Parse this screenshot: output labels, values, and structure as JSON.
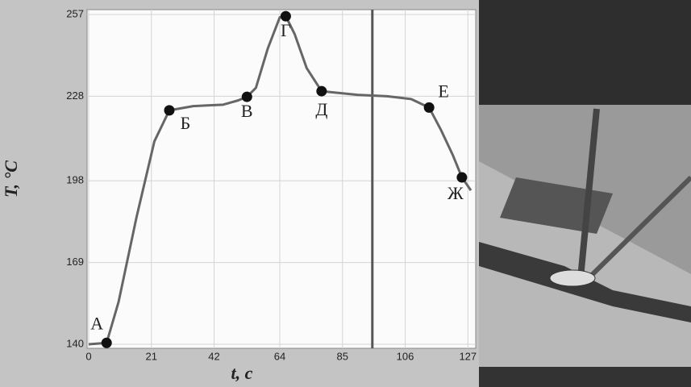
{
  "chart_data": {
    "type": "line",
    "xlabel": "t, c",
    "ylabel": "T, °C",
    "xlim": [
      0,
      128
    ],
    "ylim": [
      140,
      257
    ],
    "xticks": [
      0,
      21,
      42,
      64,
      85,
      106,
      127
    ],
    "yticks": [
      140,
      169,
      198,
      228,
      257
    ],
    "grid": true,
    "series": [
      {
        "color": "#666666",
        "x": [
          0,
          6,
          10,
          16,
          22,
          27,
          35,
          45,
          50,
          53,
          56,
          60,
          64,
          66,
          69,
          73,
          78,
          90,
          100,
          108,
          114,
          118,
          122,
          125,
          128
        ],
        "values": [
          140,
          140.5,
          155,
          185,
          212,
          223,
          224.5,
          225,
          226.5,
          227.8,
          231,
          245,
          256,
          256.4,
          250,
          238,
          229.8,
          228.5,
          228,
          227,
          224,
          216,
          207,
          199.2,
          194.6
        ]
      }
    ],
    "points": [
      {
        "label": "А",
        "x": 6,
        "y": 140.5
      },
      {
        "label": "Б",
        "x": 27,
        "y": 223
      },
      {
        "label": "В",
        "x": 53,
        "y": 227.8
      },
      {
        "label": "Г",
        "x": 66,
        "y": 256.4
      },
      {
        "label": "Д",
        "x": 78,
        "y": 229.8
      },
      {
        "label": "Е",
        "x": 114,
        "y": 224
      },
      {
        "label": "Ж",
        "x": 125,
        "y": 199.2
      }
    ],
    "vline": 95
  }
}
